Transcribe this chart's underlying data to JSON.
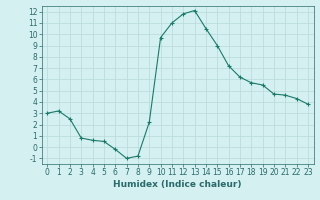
{
  "x": [
    0,
    1,
    2,
    3,
    4,
    5,
    6,
    7,
    8,
    9,
    10,
    11,
    12,
    13,
    14,
    15,
    16,
    17,
    18,
    19,
    20,
    21,
    22,
    23
  ],
  "y": [
    3.0,
    3.2,
    2.5,
    0.8,
    0.6,
    0.5,
    -0.2,
    -1.0,
    -0.8,
    2.2,
    9.7,
    11.0,
    11.8,
    12.1,
    10.5,
    9.0,
    7.2,
    6.2,
    5.7,
    5.5,
    4.7,
    4.6,
    4.3,
    3.8
  ],
  "line_color": "#1a7a6a",
  "marker": "+",
  "marker_size": 3,
  "bg_color": "#d4f0f0",
  "grid_color": "#b8dada",
  "xlabel": "Humidex (Indice chaleur)",
  "ylim": [
    -1.5,
    12.5
  ],
  "xlim": [
    -0.5,
    23.5
  ],
  "yticks": [
    -1,
    0,
    1,
    2,
    3,
    4,
    5,
    6,
    7,
    8,
    9,
    10,
    11,
    12
  ],
  "xticks": [
    0,
    1,
    2,
    3,
    4,
    5,
    6,
    7,
    8,
    9,
    10,
    11,
    12,
    13,
    14,
    15,
    16,
    17,
    18,
    19,
    20,
    21,
    22,
    23
  ],
  "xlabel_fontsize": 6.5,
  "tick_fontsize": 5.5,
  "axis_color": "#2a6a6a",
  "line_width": 0.8,
  "marker_edge_width": 0.8
}
